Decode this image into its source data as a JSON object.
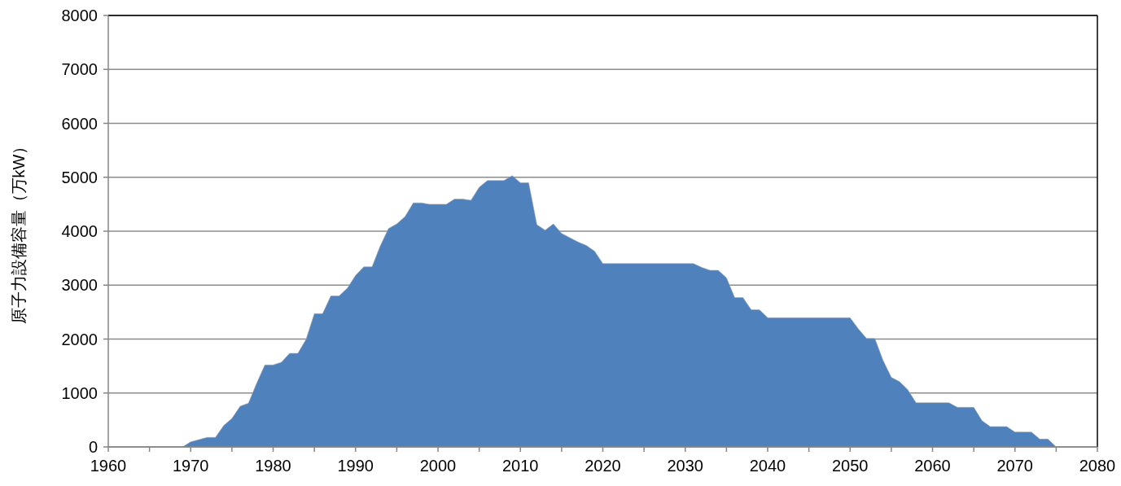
{
  "chart_data": {
    "type": "area",
    "ylabel": "原子力設備容量（万kW）",
    "x": [
      1965,
      1966,
      1967,
      1968,
      1969,
      1970,
      1971,
      1972,
      1973,
      1974,
      1975,
      1976,
      1977,
      1978,
      1979,
      1980,
      1981,
      1982,
      1983,
      1984,
      1985,
      1986,
      1987,
      1988,
      1989,
      1990,
      1991,
      1992,
      1993,
      1994,
      1995,
      1996,
      1997,
      1998,
      1999,
      2000,
      2001,
      2002,
      2003,
      2004,
      2005,
      2006,
      2007,
      2008,
      2009,
      2010,
      2011,
      2012,
      2013,
      2014,
      2015,
      2016,
      2017,
      2018,
      2019,
      2020,
      2031,
      2032,
      2033,
      2034,
      2035,
      2036,
      2037,
      2038,
      2039,
      2040,
      2050,
      2051,
      2052,
      2053,
      2054,
      2055,
      2056,
      2057,
      2058,
      2062,
      2063,
      2064,
      2065,
      2066,
      2067,
      2068,
      2069,
      2070,
      2071,
      2072,
      2073,
      2074,
      2075
    ],
    "values": [
      0,
      0,
      0,
      0,
      0,
      95,
      136,
      177,
      177,
      397,
      528,
      755,
      810,
      1180,
      1520,
      1520,
      1570,
      1735,
      1735,
      1997,
      2470,
      2470,
      2800,
      2800,
      2943,
      3180,
      3340,
      3340,
      3730,
      4050,
      4135,
      4270,
      4525,
      4525,
      4500,
      4500,
      4500,
      4595,
      4595,
      4573,
      4815,
      4940,
      4940,
      4940,
      5030,
      4900,
      4900,
      4120,
      4020,
      4135,
      3960,
      3880,
      3800,
      3735,
      3630,
      3400,
      3400,
      3330,
      3275,
      3275,
      3135,
      2770,
      2770,
      2545,
      2545,
      2395,
      2395,
      2190,
      2010,
      2010,
      1605,
      1290,
      1210,
      1060,
      820,
      820,
      735,
      735,
      735,
      488,
      377,
      377,
      377,
      277,
      277,
      277,
      146,
      146,
      0
    ],
    "color": "#4f81bd",
    "xlim": [
      1960,
      2080
    ],
    "xticks": [
      1960,
      {
        "value": 1965,
        "label": null
      },
      1970,
      {
        "value": 1975,
        "label": null
      },
      1980,
      {
        "value": 1985,
        "label": null
      },
      1990,
      {
        "value": 1995,
        "label": null
      },
      2000,
      {
        "value": 2005,
        "label": null
      },
      2010,
      {
        "value": 2015,
        "label": null
      },
      2020,
      {
        "value": 2025,
        "label": null
      },
      2030,
      {
        "value": 2035,
        "label": null
      },
      2040,
      {
        "value": 2045,
        "label": null
      },
      2050,
      {
        "value": 2055,
        "label": null
      },
      2060,
      {
        "value": 2065,
        "label": null
      },
      2070,
      {
        "value": 2075,
        "label": null
      },
      2080
    ],
    "ylim": [
      0,
      8000
    ],
    "yticks": [
      0,
      1000,
      2000,
      3000,
      4000,
      5000,
      6000,
      7000,
      8000
    ],
    "grid": "y"
  }
}
